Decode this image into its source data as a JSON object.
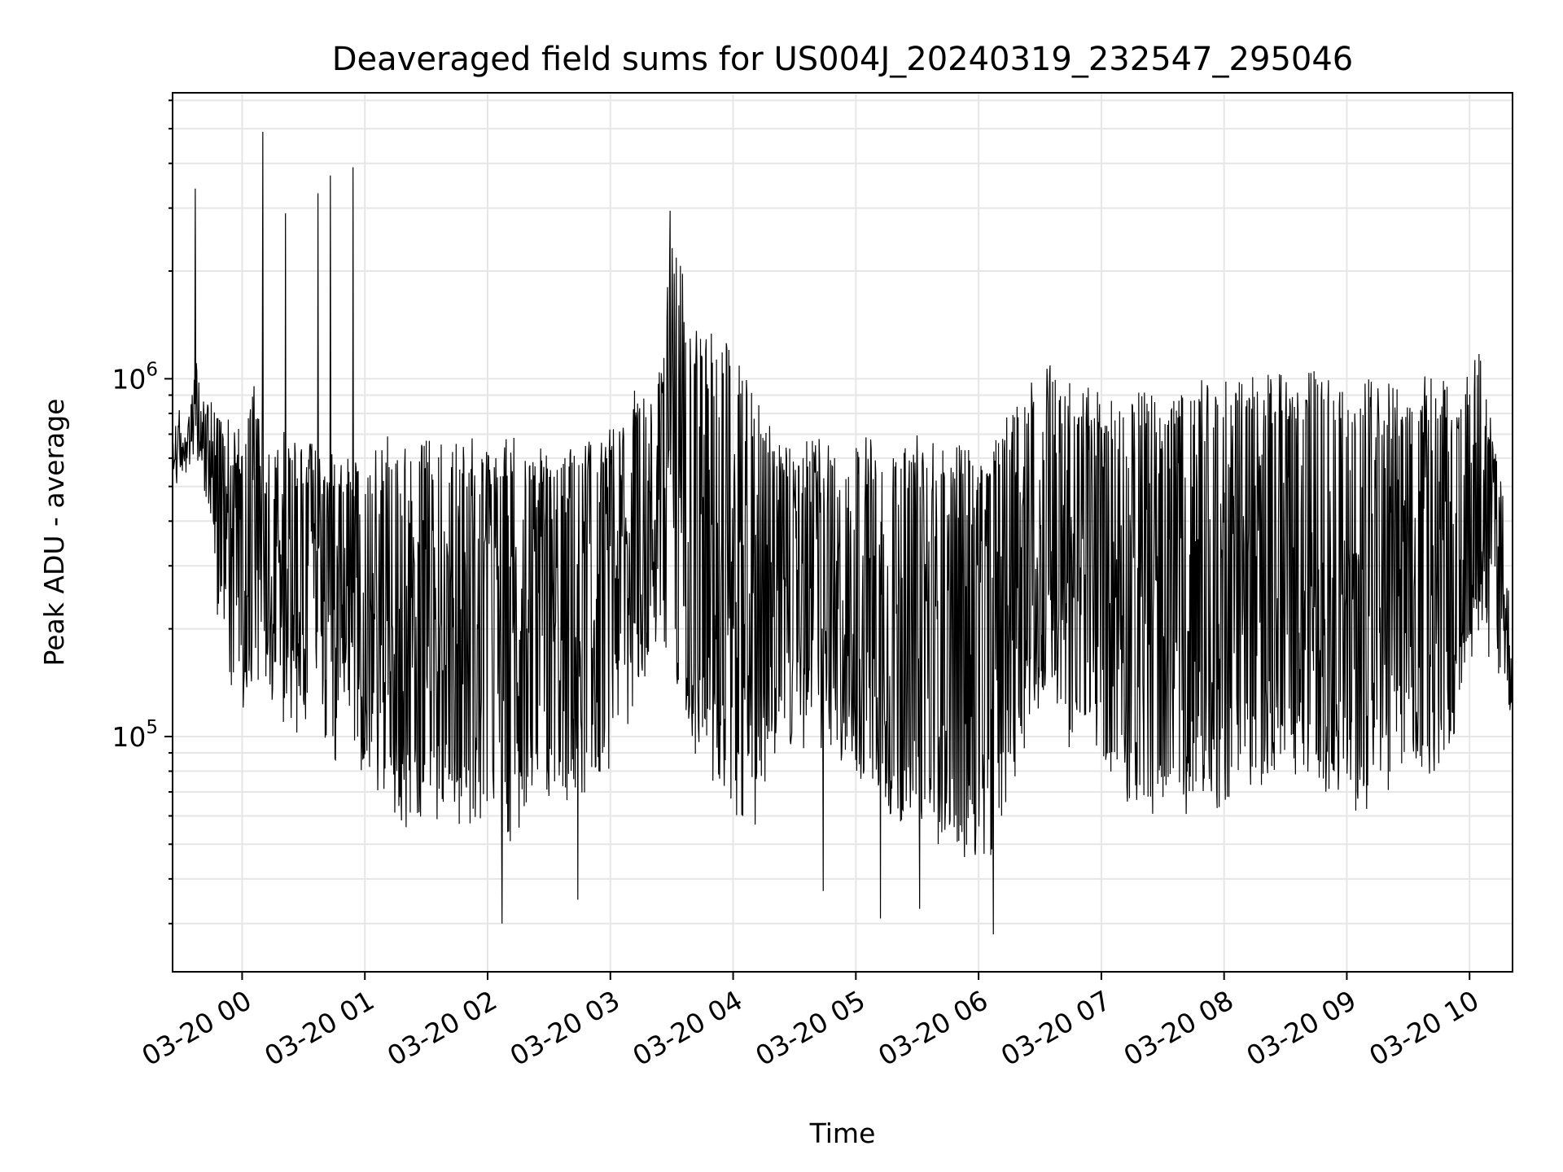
{
  "chart_data": {
    "type": "line",
    "title": "Deaveraged field sums for US004J_20240319_232547_295046",
    "xlabel": "Time",
    "ylabel": "Peak ADU - average",
    "yscale": "log",
    "xlim": [
      "2024-03-19 23:26",
      "2024-03-20 10:21"
    ],
    "ylim": [
      22000,
      6300000
    ],
    "x_tick_labels": [
      "03-20 00",
      "03-20 01",
      "03-20 02",
      "03-20 03",
      "03-20 04",
      "03-20 05",
      "03-20 06",
      "03-20 07",
      "03-20 08",
      "03-20 09",
      "03-20 10"
    ],
    "x_ticks": [
      "2024-03-20 00:00",
      "2024-03-20 01:00",
      "2024-03-20 02:00",
      "2024-03-20 03:00",
      "2024-03-20 04:00",
      "2024-03-20 05:00",
      "2024-03-20 06:00",
      "2024-03-20 07:00",
      "2024-03-20 08:00",
      "2024-03-20 09:00",
      "2024-03-20 10:00"
    ],
    "y_ticks": [
      {
        "value": 100000,
        "base": "10",
        "exp": "5"
      },
      {
        "value": 1000000,
        "base": "10",
        "exp": "6"
      }
    ],
    "grid": true,
    "line_color": "#000000",
    "series": [
      {
        "x": [
          "2024-03-19 23:27",
          "2024-03-19 23:33",
          "2024-03-19 23:38",
          "2024-03-19 23:42",
          "2024-03-19 23:46",
          "2024-03-19 23:50",
          "2024-03-19 23:55",
          "2024-03-20 00:00",
          "2024-03-20 00:05",
          "2024-03-20 00:10",
          "2024-03-20 00:15",
          "2024-03-20 00:20",
          "2024-03-20 00:25",
          "2024-03-20 00:30",
          "2024-03-20 00:35",
          "2024-03-20 00:40",
          "2024-03-20 00:45",
          "2024-03-20 00:50",
          "2024-03-20 00:55",
          "2024-03-20 01:00",
          "2024-03-20 01:10",
          "2024-03-20 01:20",
          "2024-03-20 01:30",
          "2024-03-20 01:40",
          "2024-03-20 01:50",
          "2024-03-20 02:00",
          "2024-03-20 02:08",
          "2024-03-20 02:15",
          "2024-03-20 02:25",
          "2024-03-20 02:35",
          "2024-03-20 02:45",
          "2024-03-20 02:55",
          "2024-03-20 03:05",
          "2024-03-20 03:15",
          "2024-03-20 03:25",
          "2024-03-20 03:30",
          "2024-03-20 03:40",
          "2024-03-20 03:50",
          "2024-03-20 04:00",
          "2024-03-20 04:10",
          "2024-03-20 04:20",
          "2024-03-20 04:30",
          "2024-03-20 04:40",
          "2024-03-20 04:50",
          "2024-03-20 05:00",
          "2024-03-20 05:10",
          "2024-03-20 05:20",
          "2024-03-20 05:30",
          "2024-03-20 05:40",
          "2024-03-20 05:50",
          "2024-03-20 06:00",
          "2024-03-20 06:07",
          "2024-03-20 06:15",
          "2024-03-20 06:25",
          "2024-03-20 06:35",
          "2024-03-20 06:45",
          "2024-03-20 06:55",
          "2024-03-20 07:05",
          "2024-03-20 07:15",
          "2024-03-20 07:25",
          "2024-03-20 07:35",
          "2024-03-20 07:45",
          "2024-03-20 07:55",
          "2024-03-20 08:05",
          "2024-03-20 08:15",
          "2024-03-20 08:25",
          "2024-03-20 08:35",
          "2024-03-20 08:45",
          "2024-03-20 08:55",
          "2024-03-20 09:05",
          "2024-03-20 09:15",
          "2024-03-20 09:25",
          "2024-03-20 09:35",
          "2024-03-20 09:45",
          "2024-03-20 09:55",
          "2024-03-20 10:05",
          "2024-03-20 10:15",
          "2024-03-20 10:20"
        ],
        "y_high": [
          780000,
          700000,
          1500000,
          980000,
          900000,
          850000,
          800000,
          700000,
          1000000,
          900000,
          650000,
          750000,
          700000,
          650000,
          700000,
          600000,
          650000,
          600000,
          650000,
          600000,
          700000,
          650000,
          700000,
          650000,
          700000,
          650000,
          700000,
          700000,
          650000,
          700000,
          750000,
          700000,
          800000,
          1000000,
          1100000,
          2900000,
          1400000,
          1400000,
          1300000,
          1000000,
          700000,
          650000,
          700000,
          650000,
          700000,
          700000,
          650000,
          700000,
          650000,
          700000,
          650000,
          700000,
          800000,
          1000000,
          1200000,
          1000000,
          950000,
          900000,
          950000,
          1000000,
          950000,
          1000000,
          1000000,
          1000000,
          1050000,
          1050000,
          1000000,
          1100000,
          1000000,
          1050000,
          1050000,
          1000000,
          1050000,
          1000000,
          950000,
          1300000,
          600000,
          240000
        ],
        "y_low": [
          500000,
          550000,
          600000,
          450000,
          250000,
          150000,
          120000,
          100000,
          110000,
          80000,
          130000,
          110000,
          100000,
          90000,
          110000,
          100000,
          70000,
          95000,
          80000,
          75000,
          60000,
          55000,
          50000,
          60000,
          55000,
          50000,
          45000,
          50000,
          70000,
          60000,
          55000,
          75000,
          90000,
          120000,
          150000,
          140000,
          90000,
          70000,
          60000,
          55000,
          80000,
          90000,
          90000,
          80000,
          70000,
          60000,
          55000,
          60000,
          50000,
          45000,
          40000,
          40000,
          70000,
          100000,
          120000,
          90000,
          80000,
          70000,
          60000,
          55000,
          60000,
          55000,
          60000,
          70000,
          65000,
          70000,
          75000,
          65000,
          70000,
          60000,
          65000,
          70000,
          75000,
          80000,
          110000,
          180000,
          130000,
          110000
        ],
        "peaks": [
          {
            "x": "2024-03-19 23:37",
            "y": 3400000
          },
          {
            "x": "2024-03-20 00:10",
            "y": 4900000
          },
          {
            "x": "2024-03-20 00:21",
            "y": 2900000
          },
          {
            "x": "2024-03-20 00:37",
            "y": 3300000
          },
          {
            "x": "2024-03-20 00:43",
            "y": 3700000
          },
          {
            "x": "2024-03-20 00:54",
            "y": 3900000
          },
          {
            "x": "2024-03-20 03:29",
            "y": 2950000
          }
        ],
        "dips": [
          {
            "x": "2024-03-20 02:07",
            "y": 30000
          },
          {
            "x": "2024-03-20 05:12",
            "y": 31000
          },
          {
            "x": "2024-03-20 06:07",
            "y": 28000
          },
          {
            "x": "2024-03-20 02:44",
            "y": 35000
          },
          {
            "x": "2024-03-20 05:31",
            "y": 33000
          },
          {
            "x": "2024-03-20 04:44",
            "y": 37000
          }
        ]
      }
    ]
  }
}
